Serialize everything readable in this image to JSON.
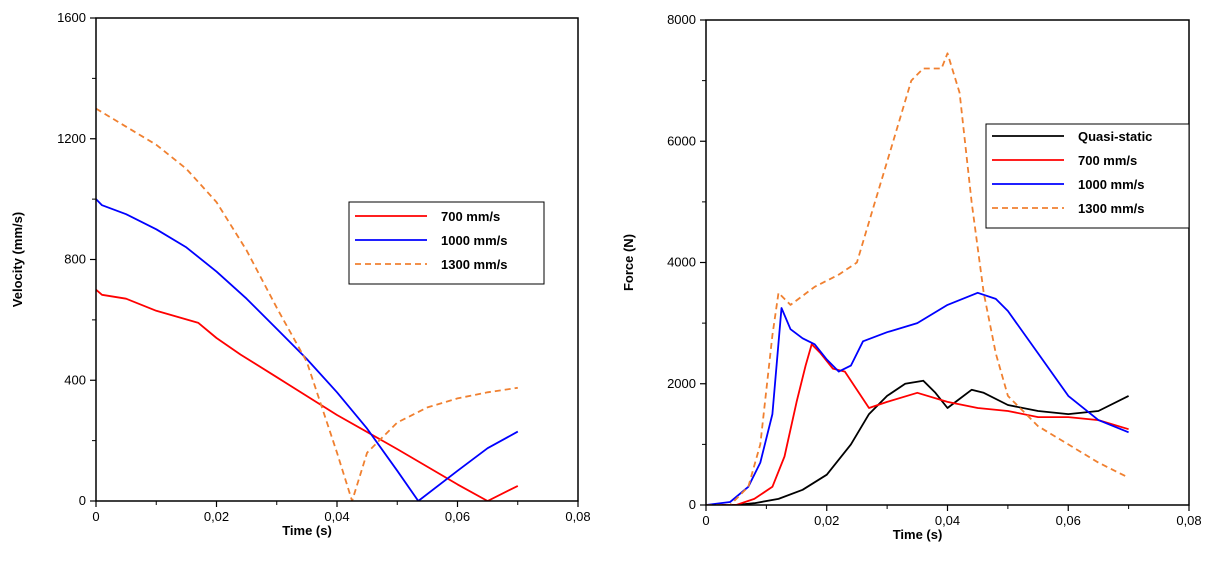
{
  "chart_data": [
    {
      "type": "line",
      "xlabel": "Time (s)",
      "ylabel": "Velocity (mm/s)",
      "xlim": [
        0,
        0.08
      ],
      "ylim": [
        0,
        1600
      ],
      "x_ticks": [
        "0",
        "0,02",
        "0,04",
        "0,06",
        "0,08"
      ],
      "y_ticks": [
        "0",
        "400",
        "800",
        "1200",
        "1600"
      ],
      "grid": false,
      "legend_position": "right",
      "series": [
        {
          "name": "700 mm/s",
          "color": "#ff0000",
          "dashed": false,
          "x": [
            0,
            0.001,
            0.005,
            0.01,
            0.017,
            0.02,
            0.024,
            0.03,
            0.04,
            0.05,
            0.06,
            0.065,
            0.07
          ],
          "y": [
            700,
            683,
            670,
            630,
            590,
            540,
            485,
            410,
            285,
            172,
            55,
            0,
            50
          ]
        },
        {
          "name": "1000 mm/s",
          "color": "#0000ff",
          "dashed": false,
          "x": [
            0,
            0.001,
            0.005,
            0.01,
            0.015,
            0.02,
            0.025,
            0.03,
            0.035,
            0.04,
            0.045,
            0.05,
            0.0535,
            0.06,
            0.065,
            0.07
          ],
          "y": [
            1000,
            980,
            950,
            900,
            840,
            760,
            670,
            570,
            470,
            360,
            240,
            100,
            0,
            100,
            175,
            230
          ]
        },
        {
          "name": "1300 mm/s",
          "color": "#f08030",
          "dashed": true,
          "x": [
            0,
            0.005,
            0.01,
            0.015,
            0.02,
            0.025,
            0.03,
            0.035,
            0.04,
            0.0425,
            0.045,
            0.05,
            0.055,
            0.06,
            0.065,
            0.07
          ],
          "y": [
            1300,
            1240,
            1180,
            1100,
            990,
            830,
            640,
            460,
            160,
            0,
            160,
            260,
            310,
            340,
            360,
            375
          ]
        }
      ]
    },
    {
      "type": "line",
      "xlabel": "Time (s)",
      "ylabel": "Force (N)",
      "xlim": [
        0,
        0.08
      ],
      "ylim": [
        0,
        8000
      ],
      "x_ticks": [
        "0",
        "0,02",
        "0,04",
        "0,06",
        "0,08"
      ],
      "y_ticks": [
        "0",
        "2000",
        "4000",
        "6000",
        "8000"
      ],
      "grid": false,
      "legend_position": "top-right",
      "series": [
        {
          "name": "Quasi-static",
          "color": "#000000",
          "dashed": false,
          "x": [
            0,
            0.005,
            0.008,
            0.012,
            0.016,
            0.02,
            0.024,
            0.027,
            0.03,
            0.033,
            0.036,
            0.038,
            0.04,
            0.042,
            0.044,
            0.046,
            0.05,
            0.055,
            0.06,
            0.065,
            0.07
          ],
          "y": [
            0,
            0,
            30,
            100,
            250,
            500,
            1000,
            1500,
            1800,
            2000,
            2050,
            1850,
            1600,
            1750,
            1900,
            1850,
            1650,
            1550,
            1500,
            1550,
            1800
          ]
        },
        {
          "name": "700 mm/s",
          "color": "#ff0000",
          "dashed": false,
          "x": [
            0,
            0.005,
            0.008,
            0.011,
            0.013,
            0.015,
            0.0165,
            0.0175,
            0.019,
            0.021,
            0.023,
            0.025,
            0.027,
            0.03,
            0.035,
            0.04,
            0.045,
            0.05,
            0.055,
            0.06,
            0.065,
            0.07
          ],
          "y": [
            0,
            0,
            100,
            300,
            800,
            1700,
            2300,
            2650,
            2500,
            2250,
            2200,
            1900,
            1600,
            1700,
            1850,
            1700,
            1600,
            1550,
            1450,
            1450,
            1400,
            1250
          ]
        },
        {
          "name": "1000 mm/s",
          "color": "#0000ff",
          "dashed": false,
          "x": [
            0,
            0.004,
            0.007,
            0.009,
            0.011,
            0.0125,
            0.014,
            0.016,
            0.018,
            0.02,
            0.022,
            0.024,
            0.026,
            0.03,
            0.035,
            0.04,
            0.045,
            0.048,
            0.05,
            0.055,
            0.06,
            0.065,
            0.07
          ],
          "y": [
            0,
            50,
            300,
            700,
            1500,
            3250,
            2900,
            2750,
            2650,
            2400,
            2200,
            2300,
            2700,
            2850,
            3000,
            3300,
            3500,
            3400,
            3200,
            2500,
            1800,
            1400,
            1200
          ]
        },
        {
          "name": "1300 mm/s",
          "color": "#f08030",
          "dashed": true,
          "x": [
            0,
            0.004,
            0.007,
            0.009,
            0.011,
            0.012,
            0.014,
            0.018,
            0.022,
            0.025,
            0.028,
            0.031,
            0.034,
            0.036,
            0.039,
            0.04,
            0.042,
            0.044,
            0.046,
            0.048,
            0.05,
            0.055,
            0.06,
            0.065,
            0.07
          ],
          "y": [
            0,
            0,
            300,
            1000,
            2800,
            3500,
            3300,
            3600,
            3800,
            4000,
            5000,
            6000,
            7000,
            7200,
            7200,
            7450,
            6800,
            5000,
            3500,
            2500,
            1800,
            1300,
            1000,
            700,
            450
          ]
        }
      ]
    }
  ]
}
